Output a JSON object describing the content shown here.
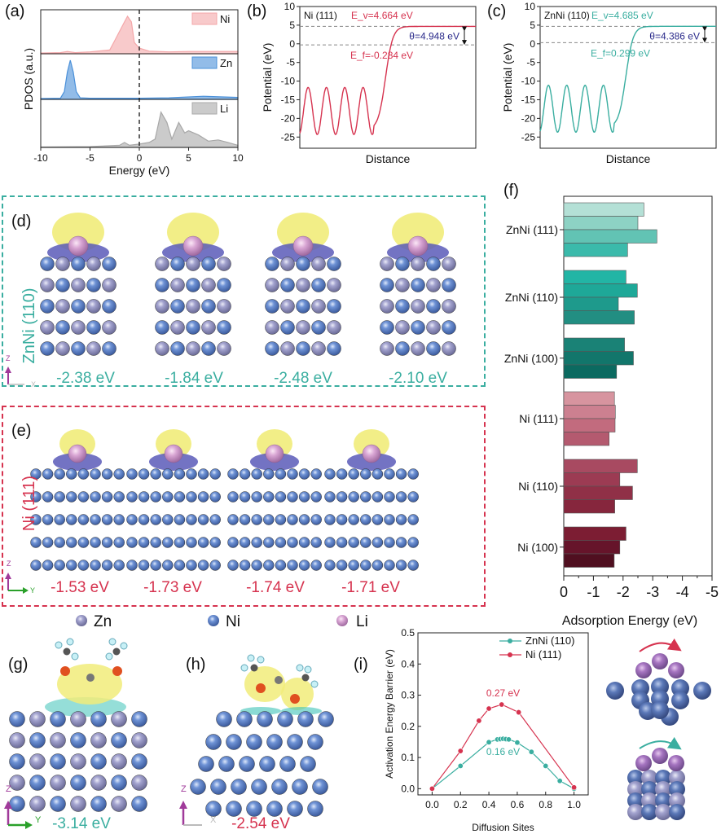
{
  "panels": {
    "a": {
      "label": "(a)"
    },
    "b": {
      "label": "(b)"
    },
    "c": {
      "label": "(c)"
    },
    "d": {
      "label": "(d)",
      "side_label": "ZnNi (110)",
      "energies": [
        "-2.38 eV",
        "-1.84 eV",
        "-2.48 eV",
        "-2.10 eV"
      ],
      "axis": {
        "up": "Z",
        "right": "X"
      }
    },
    "e": {
      "label": "(e)",
      "side_label": "Ni (111)",
      "energies": [
        "-1.53 eV",
        "-1.73 eV",
        "-1.74 eV",
        "-1.71 eV"
      ],
      "axis": {
        "up": "Z",
        "right": "Y"
      }
    },
    "f": {
      "label": "(f)"
    },
    "g": {
      "label": "(g)",
      "energy": "-3.14 eV",
      "axis": {
        "up": "Z",
        "right": "Y"
      }
    },
    "h": {
      "label": "(h)",
      "energy": "-2.54 eV",
      "axis": {
        "up": "Z",
        "right": "X"
      }
    },
    "i": {
      "label": "(i)"
    }
  },
  "atom_legend": [
    {
      "name": "Zn",
      "color": "#9a9ac8"
    },
    {
      "name": "Ni",
      "color": "#5a82c8"
    },
    {
      "name": "Li",
      "color": "#d8a0d0"
    }
  ],
  "colors": {
    "teal": "#3aaea0",
    "crimson": "#d6334f",
    "navy": "#2a2a8a"
  },
  "chart_data": [
    {
      "id": "a",
      "type": "area",
      "title": "",
      "xlabel": "Energy (eV)",
      "ylabel": "PDOS (a.u.)",
      "xlim": [
        -10,
        10
      ],
      "xticks": [
        "-10",
        "-5",
        "0",
        "5",
        "10"
      ],
      "fermi_line": 0,
      "series": [
        {
          "name": "Ni",
          "color": "#f4a7a9",
          "x": [
            -10,
            -8,
            -7.3,
            -6.5,
            -5,
            -3,
            -2.5,
            -2,
            -1.5,
            -1.2,
            -0.8,
            -0.5,
            0,
            1,
            3,
            5,
            7,
            10
          ],
          "y": [
            0.02,
            0.03,
            0.06,
            0.03,
            0.05,
            0.1,
            0.35,
            0.6,
            0.85,
            1.0,
            0.85,
            0.3,
            0.15,
            0.07,
            0.05,
            0.06,
            0.06,
            0.06
          ]
        },
        {
          "name": "Zn",
          "color": "#4a90d9",
          "x": [
            -10,
            -8,
            -7.6,
            -7.3,
            -7,
            -6.7,
            -6.4,
            -6,
            -5,
            0,
            3,
            6.5,
            10
          ],
          "y": [
            0.02,
            0.03,
            0.2,
            0.7,
            1.0,
            0.7,
            0.2,
            0.04,
            0.03,
            0.03,
            0.04,
            0.08,
            0.05
          ]
        },
        {
          "name": "Li",
          "color": "#a8a8a8",
          "x": [
            -10,
            -5,
            -2,
            -1.5,
            -1,
            0,
            1,
            1.6,
            2.2,
            2.8,
            3.3,
            4,
            4.6,
            5,
            6,
            7,
            8,
            9,
            10
          ],
          "y": [
            0.01,
            0.02,
            0.05,
            0.12,
            0.05,
            0.08,
            0.12,
            0.2,
            0.85,
            0.6,
            0.2,
            0.6,
            0.35,
            0.4,
            0.3,
            0.15,
            0.18,
            0.12,
            0.05
          ]
        }
      ]
    },
    {
      "id": "b",
      "type": "line",
      "title": "Ni (111)",
      "xlabel": "Distance",
      "ylabel": "Potential (eV)",
      "ylim": [
        -28,
        10
      ],
      "yticks": [
        "-25",
        "-20",
        "-15",
        "-10",
        "-5",
        "0",
        "5",
        "10"
      ],
      "color": "#d6334f",
      "annotations": {
        "ev": "E_v=4.664 eV",
        "ef": "E_f=-0.284 eV",
        "theta": "θ=4.948 eV"
      },
      "levels": {
        "ev": 4.664,
        "ef": -0.284
      },
      "oscillation": {
        "min": -24.3,
        "max": -11.7,
        "cycles": 4
      }
    },
    {
      "id": "c",
      "type": "line",
      "title": "ZnNi (110)",
      "xlabel": "Distance",
      "ylabel": "Potential (eV)",
      "ylim": [
        -28,
        10
      ],
      "yticks": [
        "-25",
        "-20",
        "-15",
        "-10",
        "-5",
        "0",
        "5",
        "10"
      ],
      "color": "#3aaea0",
      "annotations": {
        "ev": "E_v=4.685 eV",
        "ef": "E_f=0.299 eV",
        "theta": "θ=4.386 eV"
      },
      "levels": {
        "ev": 4.685,
        "ef": 0.299
      },
      "oscillation": {
        "min": -23.7,
        "max": -11.1,
        "cycles": 4
      }
    },
    {
      "id": "f",
      "type": "bar",
      "orientation": "horizontal",
      "xlabel": "Adsorption Energy (eV)",
      "xlim": [
        0,
        -5
      ],
      "xticks": [
        "0",
        "-1",
        "-2",
        "-3",
        "-4",
        "-5"
      ],
      "categories": [
        "ZnNi (111)",
        "ZnNi (110)",
        "ZnNi (100)",
        "Ni (111)",
        "Ni (110)",
        "Ni (100)"
      ],
      "groups": [
        {
          "name": "ZnNi (111)",
          "values": [
            -2.7,
            -2.5,
            -3.14,
            -2.15
          ],
          "colors": [
            "#b4e0d6",
            "#8dd2c4",
            "#62c3b4",
            "#3bbaab"
          ]
        },
        {
          "name": "ZnNi (110)",
          "values": [
            -2.1,
            -2.48,
            -1.84,
            -2.38
          ],
          "colors": [
            "#22b5a5",
            "#1ea898",
            "#1e9a8c",
            "#228e82"
          ]
        },
        {
          "name": "ZnNi (100)",
          "values": [
            -2.05,
            -2.35,
            -1.78
          ],
          "colors": [
            "#1a8276",
            "#12766b",
            "#0b6a60"
          ]
        },
        {
          "name": "Ni (111)",
          "values": [
            -1.71,
            -1.74,
            -1.73,
            -1.53
          ],
          "colors": [
            "#d7949f",
            "#cc8090",
            "#c26b7e",
            "#b45a6f"
          ]
        },
        {
          "name": "Ni (110)",
          "values": [
            -2.48,
            -1.89,
            -2.32,
            -1.72
          ],
          "colors": [
            "#a84a61",
            "#9c3b53",
            "#903047",
            "#86263d"
          ]
        },
        {
          "name": "Ni (100)",
          "values": [
            -2.1,
            -1.89,
            -1.7
          ],
          "colors": [
            "#7c1d33",
            "#66142a",
            "#500f20"
          ]
        }
      ]
    },
    {
      "id": "i",
      "type": "line",
      "xlabel": "Diffusion Sites",
      "ylabel": "Activation Energy Barrier (eV)",
      "xlim": [
        -0.1,
        1.1
      ],
      "ylim": [
        -0.02,
        0.5
      ],
      "xticks": [
        "0.0",
        "0.2",
        "0.4",
        "0.6",
        "0.8",
        "1.0"
      ],
      "yticks": [
        "0.0",
        "0.1",
        "0.2",
        "0.3",
        "0.4",
        "0.5"
      ],
      "legend": "top-right",
      "series": [
        {
          "name": "ZnNi (110)",
          "color": "#3aaea0",
          "x": [
            0,
            0.2,
            0.4,
            0.46,
            0.48,
            0.5,
            0.52,
            0.54,
            0.6,
            0.7,
            0.8,
            0.9,
            1.0
          ],
          "y": [
            0,
            0.073,
            0.149,
            0.158,
            0.159,
            0.16,
            0.159,
            0.158,
            0.148,
            0.118,
            0.073,
            0.025,
            0.0
          ],
          "peak_label": "0.16 eV"
        },
        {
          "name": "Ni (111)",
          "color": "#d6334f",
          "x": [
            0,
            0.2,
            0.33,
            0.4,
            0.49,
            0.61,
            1.0
          ],
          "y": [
            0,
            0.121,
            0.218,
            0.257,
            0.27,
            0.245,
            0.004
          ],
          "peak_label": "0.27 eV"
        }
      ]
    }
  ]
}
